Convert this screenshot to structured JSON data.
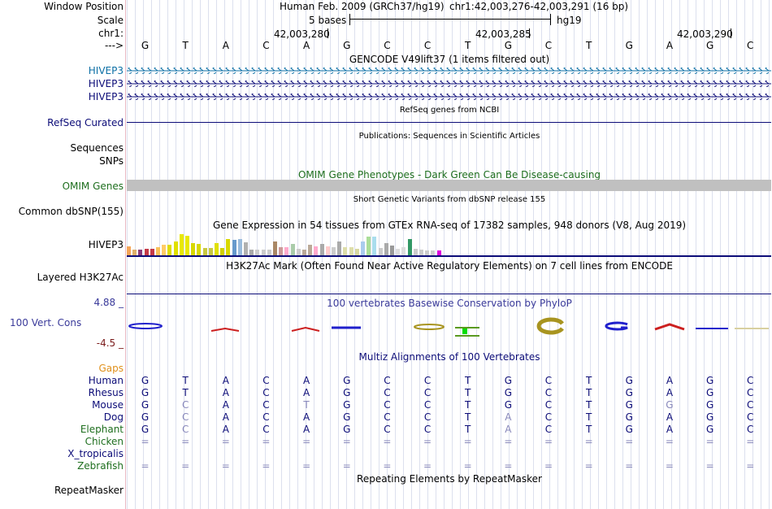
{
  "header": {
    "window_position_label": "Window Position",
    "assembly": "Human Feb. 2009 (GRCh37/hg19)",
    "coords": "chr1:42,003,276-42,003,291 (16 bp)",
    "scale_label": "Scale",
    "scale_text": "5 bases",
    "scale_db": "hg19",
    "chrom_label": "chr1:",
    "ticks": [
      "42,003,280",
      "42,003,285",
      "42,003,290"
    ],
    "strand_label": "--->"
  },
  "sequence": [
    "G",
    "T",
    "A",
    "C",
    "A",
    "G",
    "C",
    "C",
    "T",
    "G",
    "C",
    "T",
    "G",
    "A",
    "G",
    "C"
  ],
  "tracks": {
    "gencode_title": "GENCODE V49lift37 (1 items filtered out)",
    "gencode_items": [
      "HIVEP3",
      "HIVEP3",
      "HIVEP3"
    ],
    "refseq_title": "RefSeq genes from NCBI",
    "refseq_label": "RefSeq Curated",
    "pubs_title": "Publications: Sequences in Scientific Articles",
    "pubs_labels": [
      "Sequences",
      "SNPs"
    ],
    "omim_title": "OMIM Gene Phenotypes - Dark Green Can Be Disease-causing",
    "omim_label": "OMIM Genes",
    "dbsnp_title": "Short Genetic Variants from dbSNP release 155",
    "dbsnp_label": "Common dbSNP(155)",
    "gtex_title": "Gene Expression in 54 tissues from GTEx RNA-seq of 17382 samples, 948 donors (V8, Aug 2019)",
    "gtex_label": "HIVEP3",
    "h3k27_title": "H3K27Ac Mark (Often Found Near Active Regulatory Elements) on 7 cell lines from ENCODE",
    "h3k27_label": "Layered H3K27Ac",
    "phylop_title": "100 vertebrates Basewise Conservation by PhyloP",
    "phylop_max": "4.88 _",
    "phylop_label": "100 Vert. Cons",
    "phylop_min": "-4.5 _",
    "multiz_title": "Multiz Alignments of 100 Vertebrates",
    "gaps_label": "Gaps",
    "repeat_title": "Repeating Elements by RepeatMasker",
    "repeat_label": "RepeatMasker"
  },
  "alignment": [
    {
      "species": "Human",
      "bases": [
        "G",
        "T",
        "A",
        "C",
        "A",
        "G",
        "C",
        "C",
        "T",
        "G",
        "C",
        "T",
        "G",
        "A",
        "G",
        "C"
      ],
      "mismatch": []
    },
    {
      "species": "Rhesus",
      "bases": [
        "G",
        "T",
        "A",
        "C",
        "A",
        "G",
        "C",
        "C",
        "T",
        "G",
        "C",
        "T",
        "G",
        "A",
        "G",
        "C"
      ],
      "mismatch": []
    },
    {
      "species": "Mouse",
      "bases": [
        "G",
        "C",
        "A",
        "C",
        "T",
        "G",
        "C",
        "C",
        "T",
        "G",
        "C",
        "T",
        "G",
        "G",
        "G",
        "C"
      ],
      "mismatch": [
        1,
        4,
        13
      ]
    },
    {
      "species": "Dog",
      "bases": [
        "G",
        "C",
        "A",
        "C",
        "A",
        "G",
        "C",
        "C",
        "T",
        "A",
        "C",
        "T",
        "G",
        "A",
        "G",
        "C"
      ],
      "mismatch": [
        1,
        9
      ]
    },
    {
      "species": "Elephant",
      "bases": [
        "G",
        "C",
        "A",
        "C",
        "A",
        "G",
        "C",
        "C",
        "T",
        "A",
        "C",
        "T",
        "G",
        "A",
        "G",
        "C"
      ],
      "mismatch": [
        1,
        9
      ]
    },
    {
      "species": "Chicken",
      "bases": [
        "=",
        "=",
        "=",
        "=",
        "=",
        "=",
        "=",
        "=",
        "=",
        "=",
        "=",
        "=",
        "=",
        "=",
        "=",
        "="
      ],
      "mismatch": []
    },
    {
      "species": "X_tropicalis",
      "bases": [],
      "mismatch": []
    },
    {
      "species": "Zebrafish",
      "bases": [
        "=",
        "=",
        "=",
        "=",
        "=",
        "=",
        "=",
        "=",
        "=",
        "=",
        "=",
        "=",
        "=",
        "=",
        "=",
        "="
      ],
      "mismatch": []
    }
  ],
  "gtex_values": [
    0.36,
    0.24,
    0.24,
    0.28,
    0.26,
    0.32,
    0.42,
    0.42,
    0.58,
    0.87,
    0.8,
    0.5,
    0.45,
    0.3,
    0.3,
    0.5,
    0.3,
    0.66,
    0.62,
    0.66,
    0.54,
    0.24,
    0.22,
    0.22,
    0.24,
    0.56,
    0.34,
    0.34,
    0.46,
    0.26,
    0.22,
    0.44,
    0.36,
    0.48,
    0.36,
    0.34,
    0.56,
    0.32,
    0.32,
    0.28,
    0.56,
    0.76,
    0.78,
    0.3,
    0.5,
    0.4,
    0.26,
    0.32,
    0.66,
    0.26,
    0.24,
    0.2,
    0.2,
    0.2
  ],
  "gtex_colors": [
    "#f5a558",
    "#dfb06a",
    "#8a3a7a",
    "#c43a48",
    "#c43a48",
    "#f8c15a",
    "#ffcc66",
    "#dedc00",
    "#e0e000",
    "#e8e800",
    "#e8e800",
    "#d8d800",
    "#d8d800",
    "#c8c840",
    "#c8c840",
    "#e0e000",
    "#d0d000",
    "#d8d800",
    "#6699cc",
    "#99bbdd",
    "#b0b0b0",
    "#aaaaaa",
    "#cccccc",
    "#cccccc",
    "#cccccc",
    "#aa8866",
    "#cc9999",
    "#ffaacc",
    "#aaccaa",
    "#cccccc",
    "#bbaa99",
    "#bbaa99",
    "#ffaacc",
    "#aaaaaa",
    "#ffcccc",
    "#cccccc",
    "#aaaaaa",
    "#ddddaa",
    "#ddddaa",
    "#d8d8a0",
    "#aaccee",
    "#aadd99",
    "#aaddee",
    "#cccccc",
    "#aaaaaa",
    "#999999",
    "#dddddd",
    "#dddddd",
    "#339966",
    "#cccccc",
    "#cccccc",
    "#cccccc",
    "#cccccc",
    "#dd00dd"
  ],
  "colors": {
    "gene_blue": "#0b6fa5",
    "navy": "#0c0c78",
    "omim_green": "#1e6e1e",
    "phylop_red": "#7a1b1b",
    "gaps_orange": "#e0901a",
    "mismatch_grey": "#8888bb"
  }
}
